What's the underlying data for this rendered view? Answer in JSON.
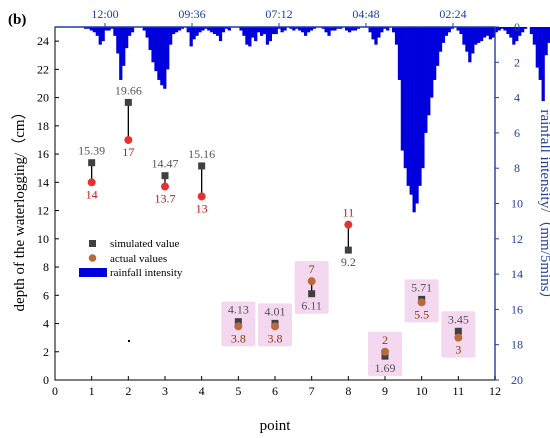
{
  "chart_data": {
    "type": "scatter",
    "panel_label": "(b)",
    "xlabel": "point",
    "ylabel": "depth of the waterlogging/（cm）",
    "y2label": "rainfall intensity/（mm/5mins）",
    "xlim": [
      0,
      12
    ],
    "ylim": [
      0,
      25
    ],
    "y2lim": [
      0,
      20
    ],
    "y2_reversed": true,
    "x_ticks": [
      "0",
      "1",
      "2",
      "3",
      "4",
      "5",
      "6",
      "7",
      "8",
      "9",
      "10",
      "11",
      "12"
    ],
    "y_ticks": [
      "0",
      "2",
      "4",
      "6",
      "8",
      "10",
      "12",
      "14",
      "16",
      "18",
      "20",
      "22",
      "24"
    ],
    "y2_ticks": [
      "0",
      "2",
      "4",
      "6",
      "8",
      "10",
      "12",
      "14",
      "16",
      "18",
      "20"
    ],
    "top_axis_ticks": [
      "12:00",
      "09:36",
      "07:12",
      "04:48",
      "02:24"
    ],
    "legend": {
      "placement": "center-left",
      "entries": [
        "simulated value",
        "actual values",
        "rainfall intensity"
      ]
    },
    "colors": {
      "simulated": "#404040",
      "actual_high": "#e83030",
      "actual_low": "#b86a3c",
      "rain": "#0000dd",
      "label_red": "#d01010",
      "label_brown": "#8b3a00",
      "highlight": "#f4d8f0"
    },
    "series": [
      {
        "name": "simulated value",
        "x": [
          1,
          2,
          3,
          4,
          5,
          6,
          7,
          8,
          9,
          10,
          11
        ],
        "values": [
          15.39,
          19.66,
          14.47,
          15.16,
          4.13,
          4.01,
          6.11,
          9.2,
          1.69,
          5.71,
          3.45
        ],
        "labels": [
          "15.39",
          "19.66",
          "14.47",
          "15.16",
          "4.13",
          "4.01",
          "6.11",
          "9.2",
          "1.69",
          "5.71",
          "3.45"
        ]
      },
      {
        "name": "actual values",
        "x": [
          1,
          2,
          3,
          4,
          5,
          6,
          7,
          8,
          9,
          10,
          11
        ],
        "values": [
          14,
          17,
          13.7,
          13,
          3.8,
          3.8,
          7,
          11,
          2,
          5.5,
          3
        ],
        "labels": [
          "14",
          "17",
          "13.7",
          "13",
          "3.8",
          "3.8",
          "7",
          "11",
          "2",
          "5.5",
          "3"
        ]
      },
      {
        "name": "rainfall intensity",
        "x_start": 0.55,
        "x_step": 0.08,
        "values": [
          0,
          0,
          0,
          0.1,
          0.1,
          0.2,
          0.3,
          0.5,
          1,
          0.8,
          0.2,
          0.2,
          0.1,
          0.5,
          1.5,
          3,
          2.2,
          1.2,
          0.5,
          0.3,
          0,
          0,
          0,
          0.2,
          0.6,
          1.3,
          2,
          2.5,
          3,
          3.3,
          3.5,
          2.4,
          1,
          0.4,
          0.3,
          0.2,
          0.1,
          0,
          0.3,
          1.1,
          0.7,
          0.5,
          0.3,
          0.2,
          0.1,
          0.2,
          0.3,
          0.4,
          0.5,
          0.8,
          0.3,
          0.1,
          0.2,
          0,
          0,
          0,
          0.2,
          0.5,
          1,
          1.1,
          0.6,
          0.8,
          0.3,
          0.5,
          0.4,
          1,
          0.8,
          0.4,
          0.4,
          0.1,
          0.3,
          0.2,
          0,
          0.1,
          0.2,
          0.1,
          0.2,
          0.3,
          0.5,
          0.3,
          0.2,
          0.1,
          0,
          0,
          0.1,
          0.3,
          0.5,
          0.2,
          0.2,
          0.1,
          0.1,
          0,
          0.2,
          0.3,
          0.2,
          0.2,
          0.1,
          0,
          0,
          0,
          0.3,
          0.7,
          1,
          0.6,
          0.3,
          0.1,
          0.2,
          0,
          0.3,
          1,
          3,
          7,
          8,
          9,
          9.5,
          10.5,
          10,
          9,
          8,
          6,
          5,
          4,
          3,
          2.2,
          1.4,
          0.9,
          0.5,
          0.3,
          0.1,
          0,
          0.2,
          0.4,
          1,
          1.4,
          2,
          1.5,
          1,
          0.9,
          0.8,
          0.6,
          0.5,
          0.7,
          0.6,
          0.3,
          0.2,
          0.1,
          0.2,
          0.4,
          0.6,
          1,
          0.8,
          0.5,
          0.3,
          0.1,
          0,
          0.4,
          1,
          2.3,
          3,
          4.2,
          1.6,
          0.9,
          0.8,
          0.6,
          0.4,
          0.2,
          0.1,
          0.2,
          0.1,
          0.1,
          0.3,
          0.2,
          0.1,
          0.1,
          0.1,
          0.1
        ]
      }
    ]
  }
}
